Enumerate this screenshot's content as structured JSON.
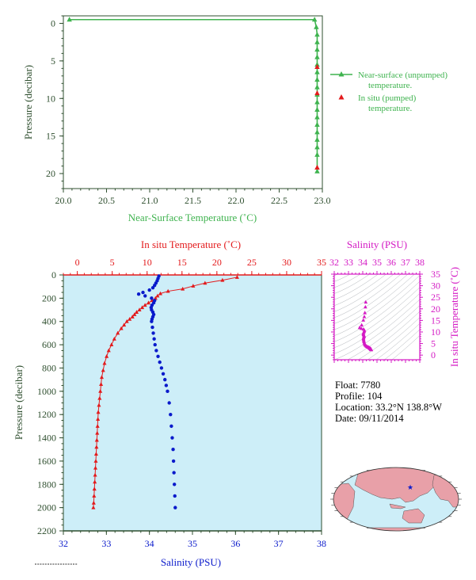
{
  "colors": {
    "green": "#3fb34f",
    "red": "#e31a1c",
    "blue": "#0a1acb",
    "magenta": "#d41ac4",
    "dark": "#2f4f2f",
    "plotbg": "#cdeef8",
    "pink": "#e8a0a8"
  },
  "chart_data": [
    {
      "type": "line",
      "xlabel": "Near-Surface Temperature (˚C)",
      "ylabel": "Pressure (decibar)",
      "xlim": [
        20.0,
        23.0
      ],
      "ylim": [
        22,
        -1
      ],
      "xticks": [
        "20.0",
        "20.5",
        "21.0",
        "21.5",
        "22.0",
        "22.5",
        "23.0"
      ],
      "yticks": [
        "0",
        "5",
        "10",
        "15",
        "20"
      ],
      "legend_position": "right",
      "series": [
        {
          "name": "Near-surface (unpumped) temperature.",
          "marker": "triangle",
          "x": [
            20.07,
            22.91,
            22.93,
            22.94,
            22.94,
            22.94,
            22.94,
            22.94,
            22.94,
            22.94,
            22.94,
            22.94,
            22.94,
            22.94,
            22.94,
            22.94,
            22.94,
            22.94,
            22.94,
            22.94,
            22.94
          ],
          "y": [
            -0.5,
            -0.5,
            0.5,
            1.5,
            2.5,
            3.5,
            4.5,
            5.5,
            6.5,
            7.5,
            8.5,
            9.5,
            10.5,
            11.5,
            12.5,
            13.5,
            14.5,
            15.5,
            16.5,
            17.5,
            19.7
          ]
        },
        {
          "name": "In situ (pumped) temperature.",
          "marker": "triangle",
          "x": [
            22.94,
            22.94,
            22.94
          ],
          "y": [
            5.8,
            9.3,
            19.2
          ]
        }
      ]
    },
    {
      "type": "scatter",
      "title_top": "In situ Temperature (˚C)",
      "xlabel": "Salinity (PSU)",
      "ylabel": "Pressure (decibar)",
      "temp_ticks": [
        "0",
        "5",
        "10",
        "15",
        "20",
        "25",
        "30",
        "35"
      ],
      "temp_lim": [
        -2,
        35
      ],
      "sal_ticks": [
        "32",
        "33",
        "34",
        "35",
        "36",
        "37",
        "38"
      ],
      "sal_lim": [
        32,
        38
      ],
      "pres_ticks": [
        "0",
        "200",
        "400",
        "600",
        "800",
        "1000",
        "1200",
        "1400",
        "1600",
        "1800",
        "2000",
        "2200"
      ],
      "ylim": [
        2200,
        0
      ],
      "temperature_profile": {
        "pressure": [
          20,
          45,
          70,
          95,
          120,
          140,
          160,
          180,
          200,
          220,
          240,
          260,
          280,
          300,
          320,
          340,
          360,
          380,
          400,
          430,
          460,
          500,
          550,
          600,
          650,
          700,
          760,
          820,
          880,
          940,
          1000,
          1060,
          1120,
          1180,
          1240,
          1300,
          1360,
          1420,
          1480,
          1540,
          1600,
          1660,
          1720,
          1780,
          1840,
          1900,
          1960,
          2000
        ],
        "temperature": [
          22.9,
          20.8,
          18.3,
          16.6,
          15.1,
          13.0,
          11.9,
          11.5,
          11.2,
          10.7,
          10.2,
          9.7,
          9.3,
          8.9,
          8.5,
          8.2,
          7.9,
          7.5,
          7.1,
          6.7,
          6.3,
          5.8,
          5.3,
          4.9,
          4.5,
          4.2,
          3.9,
          3.7,
          3.5,
          3.4,
          3.3,
          3.2,
          3.1,
          3.0,
          2.95,
          2.9,
          2.85,
          2.8,
          2.75,
          2.7,
          2.65,
          2.6,
          2.55,
          2.5,
          2.45,
          2.4,
          2.35,
          2.3
        ]
      },
      "salinity_profile": {
        "pressure": [
          10,
          30,
          50,
          70,
          90,
          110,
          130,
          150,
          165,
          180,
          200,
          220,
          240,
          260,
          280,
          300,
          320,
          340,
          360,
          380,
          400,
          450,
          500,
          550,
          600,
          650,
          700,
          750,
          800,
          850,
          900,
          950,
          1000,
          1100,
          1200,
          1300,
          1400,
          1500,
          1600,
          1700,
          1800,
          1900,
          2000
        ],
        "salinity": [
          34.22,
          34.2,
          34.18,
          34.15,
          34.12,
          34.08,
          34.0,
          33.85,
          33.75,
          33.9,
          34.05,
          34.12,
          34.1,
          34.06,
          34.04,
          34.05,
          34.08,
          34.1,
          34.08,
          34.06,
          34.05,
          34.07,
          34.09,
          34.11,
          34.13,
          34.16,
          34.2,
          34.24,
          34.28,
          34.32,
          34.36,
          34.39,
          34.42,
          34.46,
          34.49,
          34.51,
          34.53,
          34.55,
          34.56,
          34.57,
          34.58,
          34.59,
          34.6
        ]
      }
    },
    {
      "type": "scatter",
      "title_top": "Salinity (PSU)",
      "ylabel": "In situ Temperature (˚C)",
      "sal_ticks": [
        "32",
        "33",
        "34",
        "35",
        "36",
        "37",
        "38"
      ],
      "sal_lim": [
        32,
        38
      ],
      "temp_ticks": [
        "0",
        "5",
        "10",
        "15",
        "20",
        "25",
        "30",
        "35"
      ],
      "temp_lim": [
        -2,
        35
      ]
    }
  ],
  "info": {
    "float": "Float:  7780",
    "profile": "Profile:  104",
    "location": "Location:  33.2°N  138.8°W",
    "date": "Date:  09/11/2014"
  },
  "map": {
    "marker_lat": 33.2,
    "marker_lon": -138.8
  }
}
